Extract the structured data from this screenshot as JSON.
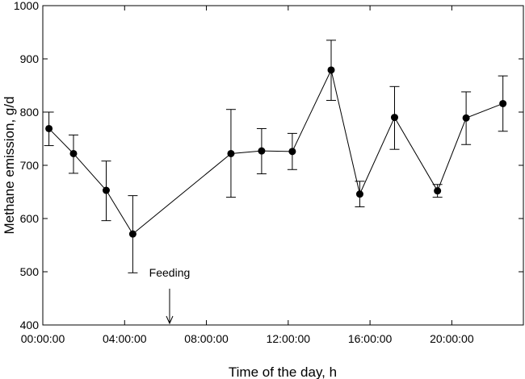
{
  "chart_data": {
    "type": "scatter",
    "title": "",
    "xlabel": "Time of the day, h",
    "ylabel": "Methane emission, g/d",
    "xlim": [
      0,
      23.5
    ],
    "ylim": [
      400,
      1000
    ],
    "x_ticks": [
      {
        "value": 0,
        "label": "00:00:00"
      },
      {
        "value": 4,
        "label": "04:00:00"
      },
      {
        "value": 8,
        "label": "08:00:00"
      },
      {
        "value": 12,
        "label": "12:00:00"
      },
      {
        "value": 16,
        "label": "16:00:00"
      },
      {
        "value": 20,
        "label": "20:00:00"
      }
    ],
    "y_ticks": [
      400,
      500,
      600,
      700,
      800,
      900,
      1000
    ],
    "grid": false,
    "series": [
      {
        "name": "Methane emission",
        "line": true,
        "color": "#000000",
        "points": [
          {
            "x": 0.3,
            "y": 769,
            "lo": 737,
            "hi": 800
          },
          {
            "x": 1.5,
            "y": 722,
            "lo": 685,
            "hi": 757
          },
          {
            "x": 3.1,
            "y": 653,
            "lo": 596,
            "hi": 708
          },
          {
            "x": 4.4,
            "y": 571,
            "lo": 498,
            "hi": 643
          },
          {
            "x": 9.2,
            "y": 722,
            "lo": 640,
            "hi": 805
          },
          {
            "x": 10.7,
            "y": 727,
            "lo": 684,
            "hi": 769
          },
          {
            "x": 12.2,
            "y": 726,
            "lo": 692,
            "hi": 760
          },
          {
            "x": 14.1,
            "y": 879,
            "lo": 822,
            "hi": 935
          },
          {
            "x": 15.5,
            "y": 646,
            "lo": 622,
            "hi": 670
          },
          {
            "x": 17.2,
            "y": 790,
            "lo": 730,
            "hi": 848
          },
          {
            "x": 19.3,
            "y": 652,
            "lo": 640,
            "hi": 664
          },
          {
            "x": 20.7,
            "y": 789,
            "lo": 739,
            "hi": 838
          },
          {
            "x": 22.5,
            "y": 816,
            "lo": 764,
            "hi": 868
          }
        ]
      }
    ],
    "annotations": [
      {
        "text": "Feeding",
        "x": 6.2,
        "type": "arrow-down"
      }
    ]
  }
}
